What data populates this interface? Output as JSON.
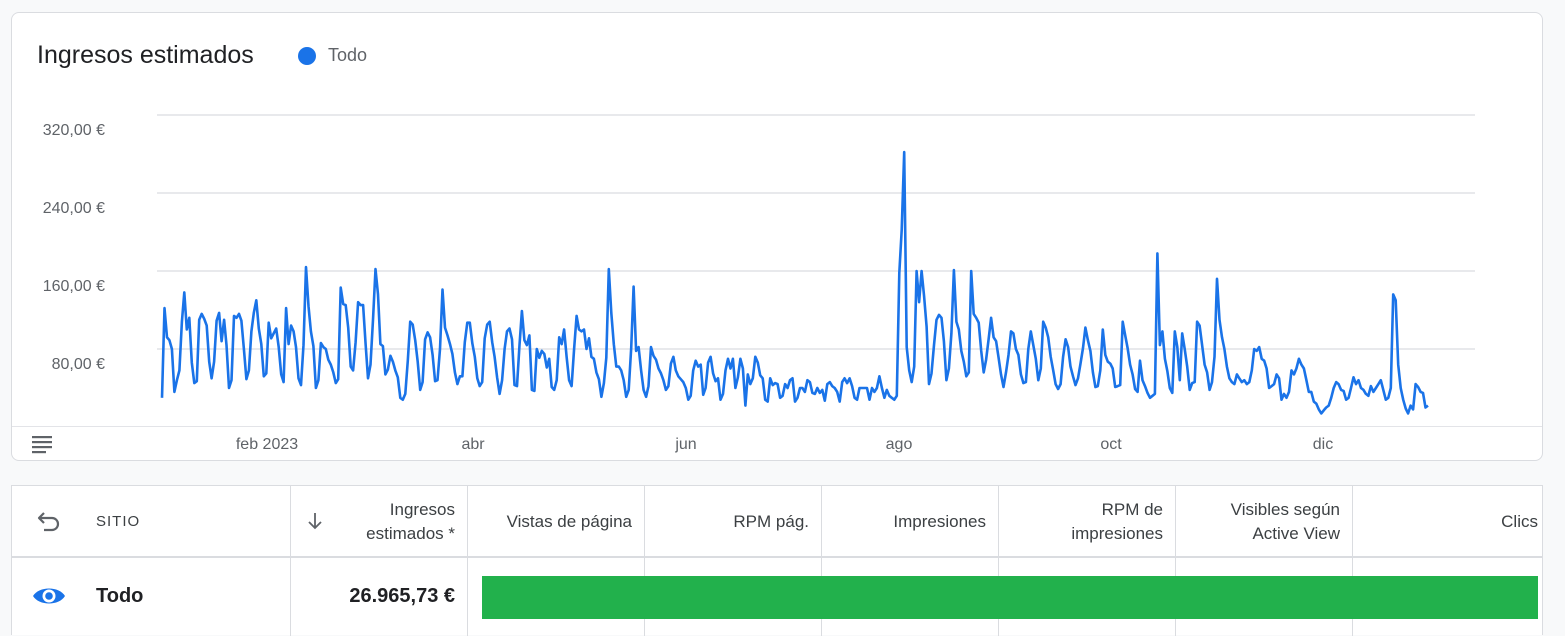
{
  "chart": {
    "title": "Ingresos estimados",
    "legend_label": "Todo",
    "series_color": "#1a73e8",
    "grid": true,
    "legend_position": "top-left"
  },
  "chart_data": {
    "type": "line",
    "title": "Ingresos estimados",
    "ylim": [
      0,
      320
    ],
    "y_ticks": [
      {
        "value": 80,
        "label": "80,00 €"
      },
      {
        "value": 160,
        "label": "160,00 €"
      },
      {
        "value": 240,
        "label": "240,00 €"
      },
      {
        "value": 320,
        "label": "320,00 €"
      }
    ],
    "x_ticks": [
      "feb 2023",
      "abr",
      "jun",
      "ago",
      "oct",
      "dic"
    ],
    "series": [
      {
        "name": "Todo",
        "values": [
          30,
          122,
          92,
          89,
          80,
          36,
          48,
          58,
          108,
          138,
          100,
          112,
          66,
          45,
          47,
          110,
          116,
          111,
          104,
          67,
          50,
          67,
          109,
          117,
          88,
          110,
          84,
          40,
          48,
          114,
          112,
          116,
          109,
          80,
          49,
          58,
          98,
          117,
          130,
          101,
          85,
          52,
          55,
          107,
          91,
          96,
          101,
          82,
          54,
          46,
          122,
          85,
          104,
          98,
          82,
          50,
          43,
          84,
          164,
          124,
          98,
          83,
          40,
          48,
          86,
          82,
          80,
          69,
          64,
          56,
          45,
          49,
          143,
          126,
          125,
          102,
          62,
          58,
          87,
          128,
          125,
          125,
          85,
          50,
          64,
          110,
          162,
          136,
          85,
          83,
          54,
          59,
          73,
          67,
          58,
          51,
          30,
          28,
          34,
          68,
          108,
          105,
          89,
          67,
          38,
          46,
          90,
          97,
          92,
          74,
          47,
          48,
          80,
          141,
          102,
          94,
          85,
          75,
          56,
          44,
          52,
          52,
          87,
          107,
          107,
          86,
          72,
          50,
          42,
          46,
          91,
          105,
          108,
          87,
          72,
          51,
          34,
          48,
          80,
          98,
          101,
          90,
          43,
          42,
          84,
          119,
          89,
          84,
          94,
          38,
          37,
          80,
          71,
          78,
          75,
          61,
          70,
          41,
          38,
          48,
          92,
          85,
          100,
          72,
          48,
          42,
          80,
          114,
          100,
          98,
          100,
          80,
          91,
          72,
          70,
          56,
          49,
          31,
          45,
          71,
          162,
          117,
          85,
          62,
          62,
          58,
          48,
          31,
          38,
          81,
          144,
          78,
          82,
          58,
          38,
          31,
          42,
          82,
          73,
          69,
          60,
          55,
          48,
          38,
          42,
          65,
          72,
          58,
          52,
          49,
          46,
          40,
          28,
          32,
          58,
          68,
          62,
          64,
          33,
          40,
          66,
          72,
          55,
          47,
          50,
          28,
          34,
          58,
          70,
          60,
          70,
          40,
          51,
          70,
          60,
          22,
          54,
          44,
          50,
          72,
          66,
          53,
          50,
          28,
          26,
          50,
          43,
          45,
          44,
          30,
          32,
          44,
          40,
          48,
          50,
          26,
          30,
          40,
          40,
          36,
          48,
          46,
          35,
          34,
          40,
          35,
          38,
          27,
          44,
          46,
          42,
          40,
          36,
          26,
          46,
          50,
          45,
          50,
          42,
          30,
          28,
          40,
          40,
          40,
          40,
          28,
          40,
          36,
          40,
          52,
          40,
          30,
          38,
          32,
          30,
          28,
          32,
          158,
          202,
          282,
          82,
          58,
          46,
          62,
          160,
          128,
          160,
          134,
          103,
          44,
          55,
          84,
          110,
          115,
          112,
          88,
          48,
          60,
          96,
          161,
          108,
          100,
          78,
          67,
          52,
          56,
          160,
          116,
          112,
          107,
          78,
          56,
          69,
          90,
          112,
          92,
          88,
          71,
          54,
          41,
          56,
          74,
          98,
          96,
          80,
          74,
          54,
          45,
          46,
          80,
          98,
          84,
          70,
          48,
          60,
          108,
          102,
          92,
          72,
          58,
          44,
          39,
          44,
          72,
          90,
          82,
          62,
          52,
          43,
          50,
          65,
          81,
          102,
          89,
          78,
          56,
          41,
          42,
          58,
          100,
          74,
          67,
          65,
          60,
          41,
          42,
          43,
          108,
          94,
          81,
          64,
          54,
          39,
          36,
          68,
          48,
          42,
          35,
          30,
          32,
          34,
          178,
          84,
          98,
          70,
          57,
          40,
          35,
          98,
          82,
          48,
          96,
          80,
          62,
          38,
          45,
          46,
          108,
          104,
          84,
          64,
          56,
          38,
          46,
          72,
          152,
          110,
          92,
          80,
          62,
          50,
          46,
          44,
          54,
          50,
          46,
          48,
          44,
          46,
          58,
          80,
          78,
          82,
          70,
          68,
          60,
          40,
          42,
          44,
          54,
          50,
          28,
          34,
          30,
          36,
          58,
          54,
          60,
          70,
          64,
          60,
          48,
          36,
          36,
          26,
          24,
          18,
          14,
          17,
          20,
          22,
          30,
          40,
          46,
          44,
          38,
          37,
          28,
          30,
          40,
          51,
          44,
          48,
          40,
          38,
          34,
          32,
          42,
          36,
          40,
          44,
          48,
          38,
          28,
          30,
          40,
          136,
          130,
          64,
          40,
          28,
          19,
          14,
          22,
          18,
          44,
          41,
          36,
          35,
          20,
          22
        ]
      }
    ]
  },
  "table": {
    "headers": {
      "site": "SITIO",
      "revenue": [
        "Ingresos",
        "estimados *"
      ],
      "page_views": "Vistas de página",
      "page_rpm": "RPM pág.",
      "impressions": "Impresiones",
      "impression_rpm": [
        "RPM de",
        "impresiones"
      ],
      "active_view": [
        "Visibles según",
        "Active View"
      ],
      "clicks": "Clics"
    },
    "rows": [
      {
        "site": "Todo",
        "revenue": "26.965,73 €"
      }
    ],
    "page_views_bar": {
      "value_fraction": 1.0,
      "color": "#22b14c"
    }
  },
  "icons": {
    "table_toggle": "table-icon",
    "undo": "undo-icon",
    "sort_down": "arrow-down-icon",
    "visibility": "eye-icon"
  }
}
